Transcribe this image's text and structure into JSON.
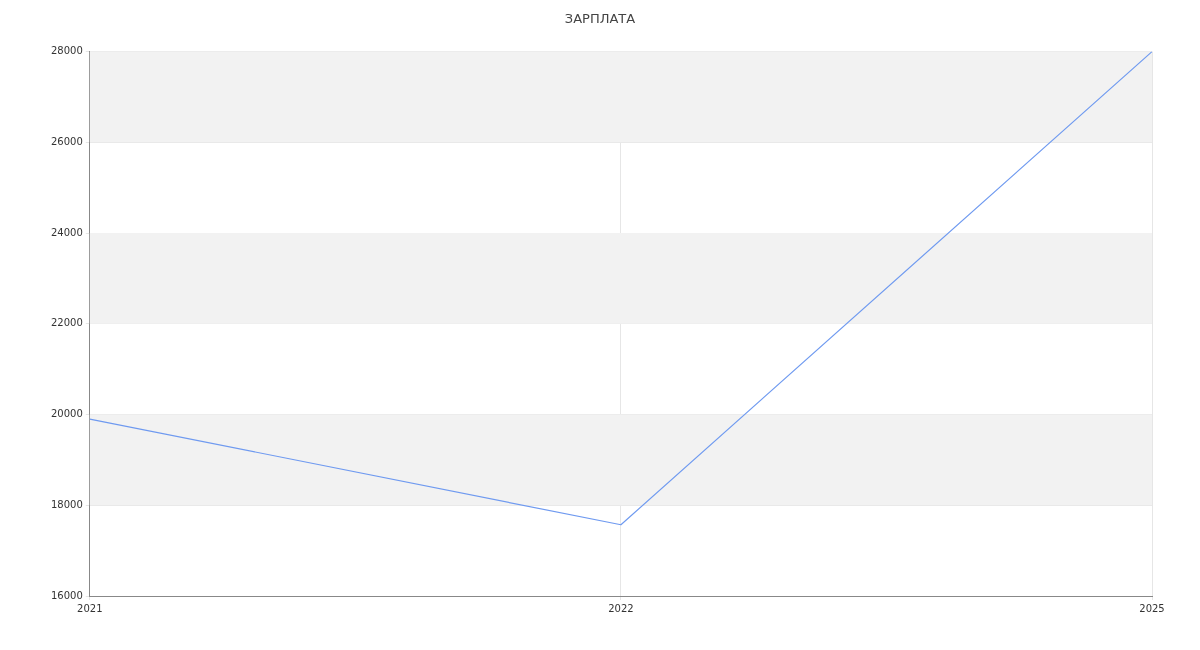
{
  "chart_data": {
    "type": "line",
    "title": "ЗАРПЛАТА",
    "categories": [
      "2021",
      "2022",
      "2025"
    ],
    "series": [
      {
        "color": "#6f9af0",
        "values": [
          19900,
          17570,
          28000
        ]
      }
    ],
    "ylim": [
      16000,
      28000
    ],
    "yticks": [
      16000,
      18000,
      20000,
      22000,
      24000,
      26000,
      28000
    ],
    "grid": true,
    "legend": false,
    "marker": "none",
    "line_style": "solid",
    "bands": [
      {
        "axis": "y",
        "from": 18000,
        "to": 20000,
        "color": "#f2f2f2"
      },
      {
        "axis": "y",
        "from": 22000,
        "to": 24000,
        "color": "#f2f2f2"
      },
      {
        "axis": "y",
        "from": 26000,
        "to": 28000,
        "color": "#f2f2f2"
      }
    ]
  }
}
